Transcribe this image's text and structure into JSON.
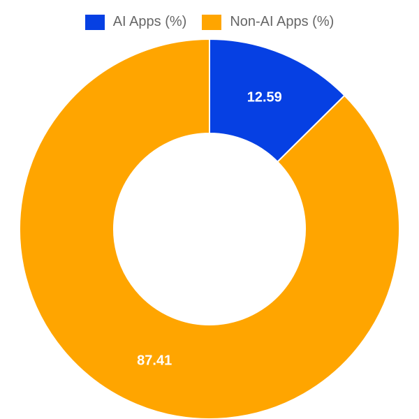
{
  "chart_data": {
    "type": "pie",
    "variant": "doughnut",
    "categories": [
      "AI Apps (%)",
      "Non-AI Apps (%)"
    ],
    "values": [
      12.59,
      87.41
    ],
    "value_labels": [
      "12.59",
      "87.41"
    ],
    "colors": [
      "#0640E3",
      "#FFA500"
    ],
    "legend_position": "top",
    "start_angle": "12 o'clock, clockwise"
  }
}
